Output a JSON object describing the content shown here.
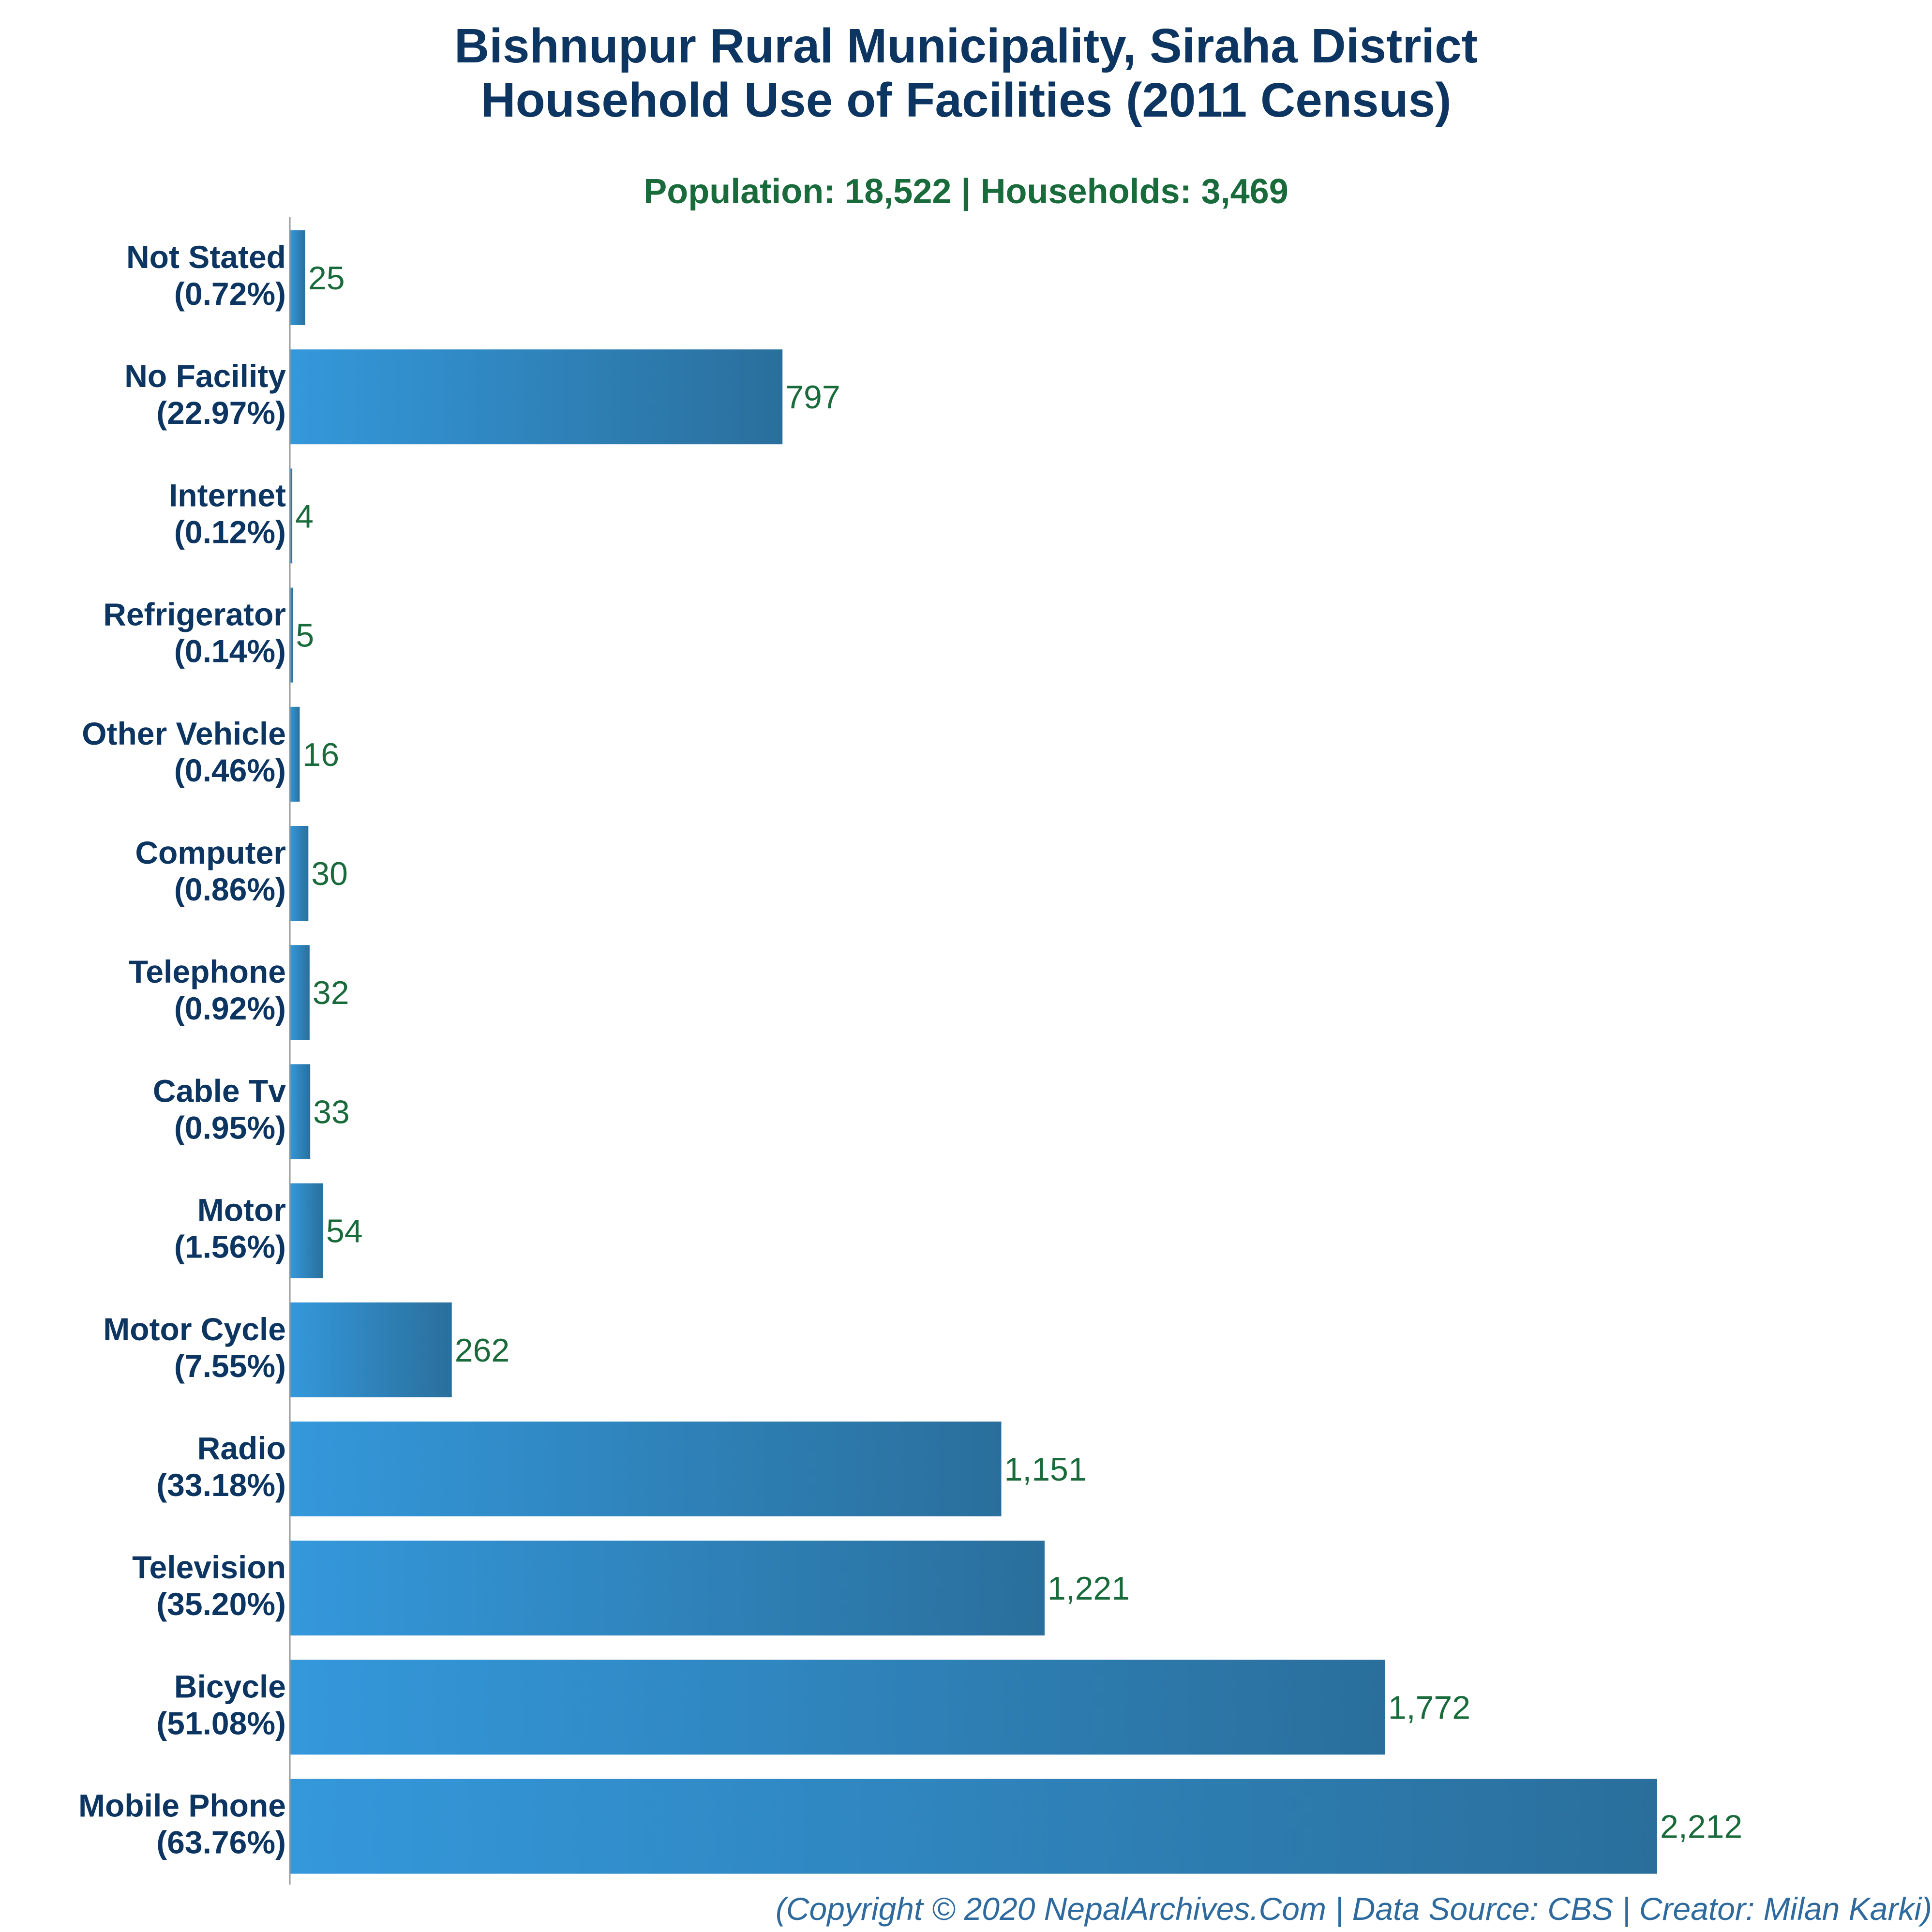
{
  "chart_data": {
    "type": "bar",
    "orientation": "horizontal",
    "title_lines": [
      "Bishnupur Rural Municipality, Siraha District",
      "Household Use of Facilities (2011 Census)"
    ],
    "subtitle": "Population: 18,522 | Households: 3,469",
    "categories": [
      "Not Stated",
      "No Facility",
      "Internet",
      "Refrigerator",
      "Other Vehicle",
      "Computer",
      "Telephone",
      "Cable Tv",
      "Motor",
      "Motor Cycle",
      "Radio",
      "Television",
      "Bicycle",
      "Mobile Phone"
    ],
    "percent_labels": [
      "(0.72%)",
      "(22.97%)",
      "(0.12%)",
      "(0.14%)",
      "(0.46%)",
      "(0.86%)",
      "(0.92%)",
      "(0.95%)",
      "(1.56%)",
      "(7.55%)",
      "(33.18%)",
      "(35.20%)",
      "(51.08%)",
      "(63.76%)"
    ],
    "values": [
      25,
      797,
      4,
      5,
      16,
      30,
      32,
      33,
      54,
      262,
      1151,
      1221,
      1772,
      2212
    ],
    "value_labels": [
      "25",
      "797",
      "4",
      "5",
      "16",
      "30",
      "32",
      "33",
      "54",
      "262",
      "1,151",
      "1,221",
      "1,772",
      "2,212"
    ],
    "xlim": [
      0,
      2212
    ],
    "grid": false,
    "legend": "none",
    "colors": {
      "bar_start": "#3498db",
      "bar_end": "#2a6f9c",
      "category_label": "#0d3561",
      "value_label": "#1a6b3c",
      "title": "#0d3561",
      "subtitle": "#1a6b3c",
      "footer": "#2e6a9e",
      "axis": "#9a9a9a"
    }
  },
  "footer": "(Copyright © 2020 NepalArchives.Com | Data Source: CBS | Creator: Milan Karki)"
}
